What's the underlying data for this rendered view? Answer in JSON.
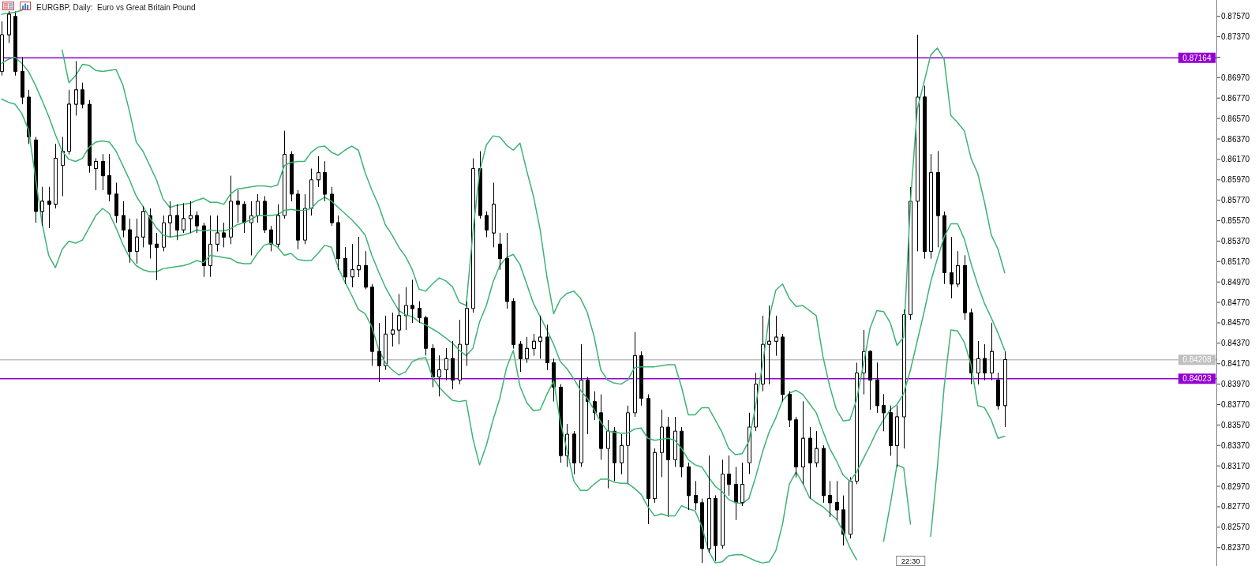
{
  "chart_data": {
    "type": "candlestick",
    "title": "EURGBP, Daily:  Euro vs Great Britain Pound",
    "categories": [
      null,
      null,
      null,
      null,
      null,
      null,
      null,
      null,
      null,
      null,
      null,
      null,
      null,
      null,
      null,
      null,
      null,
      null,
      null,
      null,
      null,
      null,
      null,
      null,
      null,
      null,
      null,
      null,
      null,
      null,
      null,
      null,
      null,
      null,
      null,
      null,
      null,
      null,
      null,
      null,
      null,
      null,
      null,
      null,
      null,
      null,
      null,
      null,
      null,
      null,
      null,
      null,
      null,
      null,
      null,
      null,
      null,
      null,
      null,
      null,
      null,
      null,
      null,
      null,
      null,
      null,
      null,
      null,
      null,
      null,
      null,
      null,
      null,
      null,
      null,
      null,
      null,
      null,
      null,
      null,
      null,
      null,
      null,
      null,
      null,
      null,
      null,
      null,
      null,
      null,
      null,
      null,
      null,
      null,
      null,
      null,
      null,
      null,
      null,
      null,
      null,
      null,
      null,
      null,
      null,
      null,
      null,
      null,
      null,
      null,
      null,
      null,
      null,
      null,
      null,
      null,
      null,
      null,
      null,
      null,
      null,
      null,
      null,
      null,
      null,
      null,
      null,
      null,
      null,
      null,
      null,
      null,
      null,
      null,
      null,
      null,
      null,
      null,
      null,
      null,
      null,
      null,
      null,
      null,
      null,
      null,
      null,
      null,
      null,
      null
    ],
    "ohlc": [
      [
        0.8703,
        0.8752,
        0.8699,
        0.8739
      ],
      [
        0.8739,
        0.8762,
        0.8731,
        0.8759
      ],
      [
        0.8757,
        0.8762,
        0.8699,
        0.8703
      ],
      [
        0.8703,
        0.8717,
        0.8671,
        0.8678
      ],
      [
        0.8678,
        0.8685,
        0.8632,
        0.8639
      ],
      [
        0.8636,
        0.8639,
        0.8555,
        0.8566
      ],
      [
        0.8566,
        0.859,
        0.8552,
        0.8576
      ],
      [
        0.8576,
        0.859,
        0.855,
        0.8573
      ],
      [
        0.8573,
        0.8632,
        0.8569,
        0.8618
      ],
      [
        0.8611,
        0.8639,
        0.8581,
        0.8625
      ],
      [
        0.8625,
        0.8685,
        0.8622,
        0.8671
      ],
      [
        0.8671,
        0.8713,
        0.866,
        0.8685
      ],
      [
        0.8685,
        0.8692,
        0.8667,
        0.8671
      ],
      [
        0.8671,
        0.8675,
        0.8604,
        0.8611
      ],
      [
        0.8608,
        0.8618,
        0.8587,
        0.8615
      ],
      [
        0.8615,
        0.8622,
        0.8587,
        0.8601
      ],
      [
        0.8601,
        0.8622,
        0.8576,
        0.8583
      ],
      [
        0.8583,
        0.8594,
        0.8555,
        0.8562
      ],
      [
        0.8562,
        0.8576,
        0.8541,
        0.8548
      ],
      [
        0.8548,
        0.8559,
        0.8516,
        0.8527
      ],
      [
        0.8527,
        0.8559,
        0.8515,
        0.8541
      ],
      [
        0.8541,
        0.8571,
        0.8531,
        0.8566
      ],
      [
        0.8562,
        0.8569,
        0.852,
        0.8534
      ],
      [
        0.8534,
        0.8545,
        0.8499,
        0.8531
      ],
      [
        0.8531,
        0.8562,
        0.8527,
        0.8555
      ],
      [
        0.8555,
        0.8576,
        0.8541,
        0.8562
      ],
      [
        0.8562,
        0.8573,
        0.8538,
        0.8548
      ],
      [
        0.8548,
        0.8574,
        0.8545,
        0.8559
      ],
      [
        0.8559,
        0.8576,
        0.8545,
        0.8562
      ],
      [
        0.8562,
        0.8566,
        0.8545,
        0.8552
      ],
      [
        0.8552,
        0.8555,
        0.8502,
        0.8513
      ],
      [
        0.8513,
        0.8562,
        0.8502,
        0.8534
      ],
      [
        0.8534,
        0.8562,
        0.8527,
        0.8545
      ],
      [
        0.8545,
        0.8555,
        0.8531,
        0.8541
      ],
      [
        0.8541,
        0.8601,
        0.8534,
        0.8576
      ],
      [
        0.8576,
        0.8587,
        0.8555,
        0.8573
      ],
      [
        0.8573,
        0.8576,
        0.8545,
        0.8555
      ],
      [
        0.8555,
        0.8576,
        0.8523,
        0.8562
      ],
      [
        0.8562,
        0.8583,
        0.8555,
        0.8576
      ],
      [
        0.8576,
        0.8581,
        0.8545,
        0.8548
      ],
      [
        0.8548,
        0.8552,
        0.8527,
        0.8534
      ],
      [
        0.8534,
        0.8573,
        0.8531,
        0.8562
      ],
      [
        0.8562,
        0.8645,
        0.8559,
        0.8622
      ],
      [
        0.8622,
        0.8625,
        0.8576,
        0.8583
      ],
      [
        0.8583,
        0.8587,
        0.8529,
        0.8538
      ],
      [
        0.8538,
        0.8583,
        0.8534,
        0.8569
      ],
      [
        0.8569,
        0.8608,
        0.8562,
        0.8597
      ],
      [
        0.8597,
        0.862,
        0.859,
        0.8604
      ],
      [
        0.8604,
        0.8615,
        0.8576,
        0.8583
      ],
      [
        0.8583,
        0.859,
        0.8552,
        0.8555
      ],
      [
        0.8555,
        0.8562,
        0.8509,
        0.852
      ],
      [
        0.852,
        0.8531,
        0.8495,
        0.8502
      ],
      [
        0.8502,
        0.8534,
        0.8492,
        0.8509
      ],
      [
        0.8509,
        0.8541,
        0.8502,
        0.8513
      ],
      [
        0.8513,
        0.8527,
        0.849,
        0.8492
      ],
      [
        0.8492,
        0.8495,
        0.8415,
        0.8429
      ],
      [
        0.8429,
        0.8457,
        0.8399,
        0.8415
      ],
      [
        0.8415,
        0.8464,
        0.8411,
        0.8446
      ],
      [
        0.8446,
        0.8467,
        0.8434,
        0.845
      ],
      [
        0.845,
        0.8485,
        0.8436,
        0.8464
      ],
      [
        0.8464,
        0.8492,
        0.845,
        0.8474
      ],
      [
        0.8474,
        0.8499,
        0.8457,
        0.8471
      ],
      [
        0.8471,
        0.8478,
        0.8457,
        0.8462
      ],
      [
        0.8462,
        0.8464,
        0.8425,
        0.8432
      ],
      [
        0.8432,
        0.8436,
        0.8394,
        0.8404
      ],
      [
        0.8404,
        0.8425,
        0.8385,
        0.8411
      ],
      [
        0.8411,
        0.8432,
        0.8401,
        0.8422
      ],
      [
        0.8422,
        0.8439,
        0.8392,
        0.8401
      ],
      [
        0.8401,
        0.846,
        0.8397,
        0.8436
      ],
      [
        0.8436,
        0.8478,
        0.8415,
        0.8471
      ],
      [
        0.8471,
        0.8618,
        0.8467,
        0.8608
      ],
      [
        0.8608,
        0.8625,
        0.8559,
        0.8562
      ],
      [
        0.8562,
        0.8566,
        0.8541,
        0.8548
      ],
      [
        0.8545,
        0.8594,
        0.8531,
        0.8573
      ],
      [
        0.8534,
        0.8545,
        0.8509,
        0.852
      ],
      [
        0.852,
        0.8545,
        0.8471,
        0.8478
      ],
      [
        0.8478,
        0.8481,
        0.8432,
        0.8436
      ],
      [
        0.8436,
        0.8439,
        0.8409,
        0.8422
      ],
      [
        0.8422,
        0.8443,
        0.8418,
        0.8432
      ],
      [
        0.8432,
        0.8446,
        0.8425,
        0.8439
      ],
      [
        0.8439,
        0.8464,
        0.8422,
        0.8443
      ],
      [
        0.8443,
        0.8455,
        0.8411,
        0.8418
      ],
      [
        0.8418,
        0.8422,
        0.838,
        0.8394
      ],
      [
        0.8394,
        0.8397,
        0.832,
        0.8327
      ],
      [
        0.8327,
        0.8358,
        0.8316,
        0.8348
      ],
      [
        0.8348,
        0.8351,
        0.8309,
        0.832
      ],
      [
        0.832,
        0.8436,
        0.8316,
        0.8401
      ],
      [
        0.8401,
        0.8404,
        0.8348,
        0.838
      ],
      [
        0.838,
        0.839,
        0.8362,
        0.8369
      ],
      [
        0.8369,
        0.8387,
        0.8323,
        0.8334
      ],
      [
        0.8334,
        0.8362,
        0.8295,
        0.8351
      ],
      [
        0.8351,
        0.8355,
        0.8302,
        0.832
      ],
      [
        0.832,
        0.8348,
        0.8309,
        0.8337
      ],
      [
        0.8337,
        0.8376,
        0.8299,
        0.8369
      ],
      [
        0.8369,
        0.8448,
        0.8365,
        0.8425
      ],
      [
        0.8425,
        0.8429,
        0.8376,
        0.8383
      ],
      [
        0.8383,
        0.8387,
        0.826,
        0.8285
      ],
      [
        0.8285,
        0.8334,
        0.8281,
        0.833
      ],
      [
        0.833,
        0.8372,
        0.8306,
        0.8355
      ],
      [
        0.8355,
        0.8365,
        0.8267,
        0.8323
      ],
      [
        0.8323,
        0.8365,
        0.8316,
        0.8351
      ],
      [
        0.8351,
        0.8355,
        0.8306,
        0.8316
      ],
      [
        0.8316,
        0.832,
        0.8274,
        0.8288
      ],
      [
        0.8288,
        0.8302,
        0.8274,
        0.8281
      ],
      [
        0.8281,
        0.8285,
        0.8222,
        0.8236
      ],
      [
        0.8236,
        0.8327,
        0.8232,
        0.8285
      ],
      [
        0.8285,
        0.8288,
        0.8224,
        0.8239
      ],
      [
        0.8239,
        0.8323,
        0.8236,
        0.8309
      ],
      [
        0.8309,
        0.8327,
        0.8288,
        0.8299
      ],
      [
        0.8299,
        0.8316,
        0.8264,
        0.8281
      ],
      [
        0.8281,
        0.832,
        0.8278,
        0.8299
      ],
      [
        0.832,
        0.8369,
        0.8309,
        0.8355
      ],
      [
        0.8355,
        0.8408,
        0.8351,
        0.8397
      ],
      [
        0.8397,
        0.8464,
        0.839,
        0.8436
      ],
      [
        0.8436,
        0.8474,
        0.8397,
        0.8439
      ],
      [
        0.8439,
        0.8464,
        0.8425,
        0.8443
      ],
      [
        0.8443,
        0.8446,
        0.838,
        0.8387
      ],
      [
        0.8387,
        0.839,
        0.8355,
        0.8362
      ],
      [
        0.8362,
        0.8365,
        0.8306,
        0.8316
      ],
      [
        0.8316,
        0.838,
        0.8299,
        0.8344
      ],
      [
        0.8344,
        0.8355,
        0.8285,
        0.832
      ],
      [
        0.832,
        0.8351,
        0.8316,
        0.8334
      ],
      [
        0.8334,
        0.8337,
        0.8281,
        0.8288
      ],
      [
        0.8288,
        0.8302,
        0.8267,
        0.8281
      ],
      [
        0.8281,
        0.8302,
        0.8264,
        0.8274
      ],
      [
        0.8274,
        0.8288,
        0.8239,
        0.825
      ],
      [
        0.825,
        0.8306,
        0.8246,
        0.8302
      ],
      [
        0.8302,
        0.8418,
        0.8299,
        0.8408
      ],
      [
        0.8408,
        0.845,
        0.8387,
        0.8429
      ],
      [
        0.8429,
        0.843,
        0.8372,
        0.8401
      ],
      [
        0.8401,
        0.8418,
        0.8369,
        0.8376
      ],
      [
        0.8376,
        0.8387,
        0.8351,
        0.8369
      ],
      [
        0.8369,
        0.8376,
        0.8327,
        0.8337
      ],
      [
        0.8337,
        0.8376,
        0.8316,
        0.8365
      ],
      [
        0.8365,
        0.847,
        0.8334,
        0.8465
      ],
      [
        0.8465,
        0.859,
        0.846,
        0.8576
      ],
      [
        0.8576,
        0.8739,
        0.8527,
        0.8678
      ],
      [
        0.8678,
        0.8689,
        0.852,
        0.8527
      ],
      [
        0.8527,
        0.8622,
        0.852,
        0.8604
      ],
      [
        0.8604,
        0.8625,
        0.8531,
        0.8562
      ],
      [
        0.8562,
        0.8566,
        0.8495,
        0.8506
      ],
      [
        0.8506,
        0.8541,
        0.8481,
        0.8495
      ],
      [
        0.8495,
        0.8527,
        0.8492,
        0.8513
      ],
      [
        0.8513,
        0.8523,
        0.846,
        0.8467
      ],
      [
        0.8467,
        0.8471,
        0.8397,
        0.8408
      ],
      [
        0.8408,
        0.8439,
        0.8397,
        0.8422
      ],
      [
        0.8422,
        0.8436,
        0.8401,
        0.8408
      ],
      [
        0.8408,
        0.8457,
        0.8401,
        0.8429
      ],
      [
        0.8401,
        0.8408,
        0.8372,
        0.8376
      ],
      [
        0.8376,
        0.8429,
        0.8355,
        0.8421
      ]
    ],
    "series": [
      {
        "type": "line",
        "color": "#3cb371",
        "values": [
          0.8759,
          0.876,
          0.8761,
          0.8763,
          null,
          null,
          null,
          null,
          null,
          0.8724,
          0.8692,
          0.8699,
          0.871,
          0.8709,
          0.8704,
          0.8703,
          0.8704,
          0.8705,
          0.869,
          0.8664,
          0.8634,
          0.8625,
          0.8611,
          0.8597,
          0.8578,
          0.857,
          0.8572,
          0.8573,
          0.8574,
          0.8577,
          0.8579,
          0.8575,
          0.8575,
          0.8573,
          0.8583,
          0.8588,
          0.8589,
          0.859,
          0.8591,
          0.8591,
          0.859,
          0.8592,
          0.8611,
          0.8614,
          0.8615,
          0.8615,
          0.8624,
          0.8629,
          0.863,
          0.8624,
          0.8621,
          0.8626,
          0.863,
          0.8626,
          0.8604,
          0.8587,
          0.8572,
          0.8553,
          0.8543,
          0.8531,
          0.8522,
          0.8509,
          0.849,
          0.8488,
          0.8495,
          0.8501,
          0.8498,
          0.8492,
          0.8477,
          0.8474,
          0.8545,
          0.8605,
          0.8631,
          0.864,
          0.8639,
          0.8631,
          0.8626,
          0.8633,
          0.8606,
          0.8581,
          0.8548,
          0.8502,
          0.8466,
          0.848,
          0.8486,
          0.8488,
          0.8481,
          0.8467,
          0.8444,
          0.8411,
          0.8401,
          0.8398,
          0.8397,
          0.8401,
          0.8413,
          0.8414,
          0.8414,
          0.8414,
          0.8415,
          0.8416,
          0.8416,
          0.8394,
          0.8367,
          0.8367,
          0.8374,
          0.8374,
          0.8362,
          0.835,
          0.8334,
          0.8328,
          0.8329,
          0.8341,
          0.8376,
          0.8415,
          0.8462,
          0.8489,
          0.8495,
          0.8481,
          0.8473,
          0.8474,
          0.8469,
          0.8464,
          0.8424,
          0.8395,
          0.8372,
          0.8361,
          0.8362,
          0.8382,
          0.8416,
          0.8452,
          0.8469,
          0.8468,
          0.8457,
          0.8435,
          0.8443,
          0.8576,
          0.8666,
          0.8692,
          0.8719,
          0.8726,
          0.8715,
          0.866,
          0.8653,
          0.8645,
          0.8618,
          0.8603,
          0.8575,
          0.8543,
          0.8529,
          0.8506
        ]
      },
      {
        "type": "line",
        "color": "#3cb371",
        "values": [
          0.8711,
          0.8715,
          0.8717,
          0.8711,
          0.8703,
          0.869,
          0.8675,
          0.8659,
          0.8641,
          0.8625,
          0.8617,
          0.8615,
          0.8618,
          0.8629,
          0.8634,
          0.8635,
          0.8634,
          0.8625,
          0.8611,
          0.8597,
          0.8581,
          0.8571,
          0.856,
          0.855,
          0.8543,
          0.8541,
          0.8542,
          0.8543,
          0.8545,
          0.8548,
          0.8547,
          0.8548,
          0.8547,
          0.8547,
          0.8549,
          0.8553,
          0.8555,
          0.8558,
          0.8562,
          0.8562,
          0.8562,
          0.8563,
          0.8567,
          0.8568,
          0.8567,
          0.8567,
          0.8569,
          0.8576,
          0.858,
          0.8576,
          0.857,
          0.8564,
          0.8558,
          0.8551,
          0.8543,
          0.8523,
          0.8507,
          0.8492,
          0.848,
          0.8469,
          0.8465,
          0.8463,
          0.8458,
          0.8455,
          0.8451,
          0.8447,
          0.8442,
          0.8437,
          0.843,
          0.8425,
          0.8432,
          0.8458,
          0.8474,
          0.8497,
          0.8513,
          0.8521,
          0.8524,
          0.8514,
          0.8495,
          0.8476,
          0.8463,
          0.845,
          0.8436,
          0.8419,
          0.8412,
          0.8402,
          0.8391,
          0.8383,
          0.8372,
          0.836,
          0.8351,
          0.835,
          0.8349,
          0.8349,
          0.8353,
          0.8354,
          0.8344,
          0.8342,
          0.8343,
          0.8344,
          0.8342,
          0.8334,
          0.8323,
          0.8318,
          0.8316,
          0.8306,
          0.8297,
          0.8292,
          0.8284,
          0.8281,
          0.828,
          0.8285,
          0.8306,
          0.833,
          0.835,
          0.8364,
          0.8381,
          0.8388,
          0.8391,
          0.8387,
          0.8378,
          0.8369,
          0.8351,
          0.8334,
          0.8322,
          0.8308,
          0.8302,
          0.8311,
          0.8324,
          0.8337,
          0.8351,
          0.8362,
          0.8372,
          0.8377,
          0.8388,
          0.8411,
          0.8439,
          0.8467,
          0.8497,
          0.852,
          0.8541,
          0.8554,
          0.8554,
          0.8539,
          0.8515,
          0.8494,
          0.8476,
          0.8462,
          0.8447,
          0.843
        ]
      },
      {
        "type": "line",
        "color": "#3cb371",
        "values": [
          0.8676,
          0.8673,
          0.8671,
          0.8662,
          0.8646,
          0.8601,
          0.8555,
          0.8523,
          0.8511,
          0.8529,
          0.8537,
          0.8535,
          0.8538,
          0.855,
          0.8562,
          0.8569,
          0.8564,
          0.855,
          0.8534,
          0.8521,
          0.8513,
          0.8509,
          0.8507,
          0.8507,
          0.851,
          0.8511,
          0.8512,
          0.8513,
          0.8515,
          0.8518,
          0.8516,
          0.8523,
          0.8522,
          0.8521,
          0.852,
          0.8516,
          0.8515,
          0.8515,
          0.8525,
          0.8533,
          0.8535,
          0.8531,
          0.8523,
          0.8525,
          0.8519,
          0.8518,
          0.8518,
          0.8525,
          0.8533,
          0.8531,
          0.8511,
          0.8497,
          0.8484,
          0.847,
          0.8466,
          0.8453,
          0.8431,
          0.8418,
          0.8411,
          0.8406,
          0.8409,
          0.8419,
          0.8422,
          0.8423,
          0.8404,
          0.8394,
          0.8387,
          0.8381,
          0.838,
          0.8381,
          0.8344,
          0.8318,
          0.8337,
          0.8362,
          0.8383,
          0.8413,
          0.843,
          0.8395,
          0.8379,
          0.8371,
          0.8372,
          0.8387,
          0.84,
          0.836,
          0.8332,
          0.8302,
          0.8293,
          0.8293,
          0.8299,
          0.8304,
          0.8304,
          0.8301,
          0.83,
          0.83,
          0.8295,
          0.8289,
          0.8277,
          0.8268,
          0.827,
          0.8268,
          0.8268,
          0.8278,
          0.8275,
          0.8273,
          0.8258,
          0.8234,
          0.8222,
          0.8223,
          0.8229,
          0.823,
          0.823,
          0.8227,
          0.8224,
          0.8222,
          0.8223,
          0.8234,
          0.826,
          0.8299,
          0.8311,
          0.83,
          0.8286,
          0.8281,
          0.8277,
          0.8271,
          0.8265,
          0.8253,
          0.8237,
          0.8225,
          null,
          null,
          null,
          0.8243,
          0.8279,
          0.8318,
          0.8315,
          0.826,
          null,
          null,
          0.8248,
          0.8316,
          0.8394,
          0.845,
          0.8449,
          0.8438,
          0.8416,
          0.8376,
          0.8374,
          0.8362,
          0.8344,
          0.8346
        ]
      }
    ],
    "ylim": [
      0.8219,
      0.8773
    ],
    "yticks": [
      {
        "value": 0.8237,
        "label": "0.82370"
      },
      {
        "value": 0.8257,
        "label": "0.82570"
      },
      {
        "value": 0.8277,
        "label": "0.82770"
      },
      {
        "value": 0.8297,
        "label": "0.82970"
      },
      {
        "value": 0.8317,
        "label": "0.83170"
      },
      {
        "value": 0.8337,
        "label": "0.83370"
      },
      {
        "value": 0.8357,
        "label": "0.83570"
      },
      {
        "value": 0.8377,
        "label": "0.83770"
      },
      {
        "value": 0.8397,
        "label": "0.83970"
      },
      {
        "value": 0.8417,
        "label": "0.84170"
      },
      {
        "value": 0.8437,
        "label": "0.84370"
      },
      {
        "value": 0.8457,
        "label": "0.84570"
      },
      {
        "value": 0.8477,
        "label": "0.84770"
      },
      {
        "value": 0.8497,
        "label": "0.84970"
      },
      {
        "value": 0.8517,
        "label": "0.85170"
      },
      {
        "value": 0.8537,
        "label": "0.85370"
      },
      {
        "value": 0.8557,
        "label": "0.85570"
      },
      {
        "value": 0.8577,
        "label": "0.85770"
      },
      {
        "value": 0.8597,
        "label": "0.85970"
      },
      {
        "value": 0.8617,
        "label": "0.86170"
      },
      {
        "value": 0.8637,
        "label": "0.86370"
      },
      {
        "value": 0.8657,
        "label": "0.86570"
      },
      {
        "value": 0.8677,
        "label": "0.86770"
      },
      {
        "value": 0.8697,
        "label": "0.86970"
      },
      {
        "value": 0.8717,
        "label": null
      },
      {
        "value": 0.8737,
        "label": "0.87370"
      },
      {
        "value": 0.8757,
        "label": "0.87570"
      }
    ],
    "ref_lines": [
      {
        "axis": "y",
        "value": 0.87164,
        "label": "0.87164",
        "color": "#9400d3"
      },
      {
        "axis": "y",
        "value": 0.84023,
        "label": "0.84023",
        "color": "#9400d3"
      },
      {
        "axis": "y",
        "value": 0.84208,
        "label": "0.84208",
        "color": "#c0c0c0"
      }
    ],
    "annotations": [
      "22:30"
    ],
    "tick_labels": "y"
  }
}
